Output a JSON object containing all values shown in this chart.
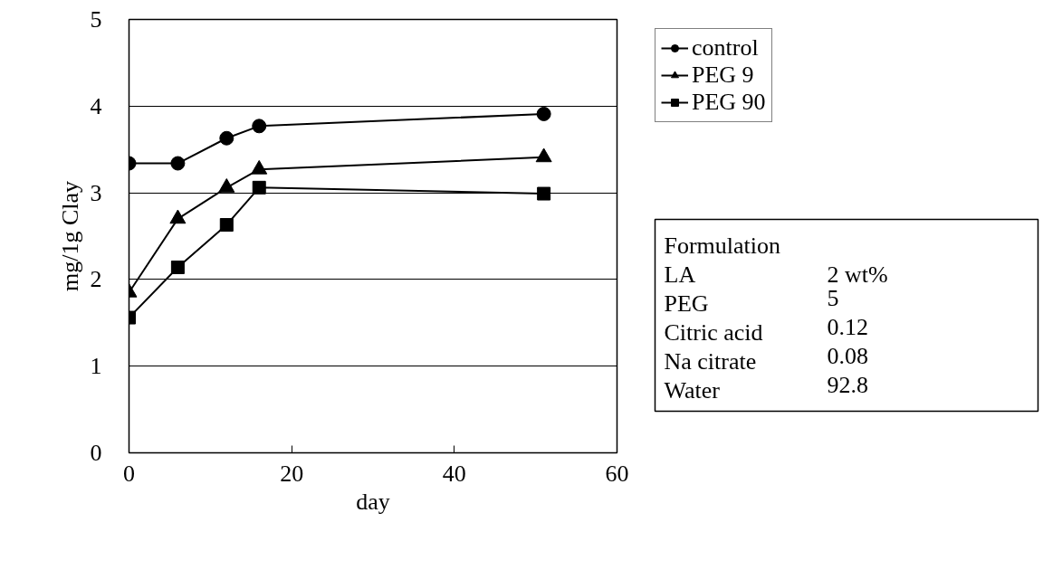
{
  "chart_data": {
    "type": "line",
    "xlabel": "day",
    "ylabel": "mg/1g Clay",
    "x": [
      0,
      6,
      12,
      16,
      51
    ],
    "series": [
      {
        "name": "control",
        "color": "#000000",
        "marker": "circle",
        "values": [
          3.34,
          3.34,
          3.63,
          3.77,
          3.91
        ]
      },
      {
        "name": "PEG 9",
        "color": "#000000",
        "marker": "triangle",
        "values": [
          1.85,
          2.7,
          3.06,
          3.27,
          3.41
        ]
      },
      {
        "name": "PEG 90",
        "color": "#000000",
        "marker": "square",
        "values": [
          1.56,
          2.14,
          2.63,
          3.06,
          2.99
        ]
      }
    ],
    "xlim": [
      0,
      60
    ],
    "xticks": [
      0,
      20,
      40,
      60
    ],
    "ylim": [
      0,
      5
    ],
    "yticks": [
      0,
      1,
      2,
      3,
      4,
      5
    ],
    "grid": "y",
    "legend": "top right",
    "line_style": "solid",
    "annotations": [
      "Formulation",
      "LA",
      "2 wt%",
      "PEG",
      "5",
      "Citric acid",
      "0.12",
      "Na citrate",
      "0.08",
      "Water",
      "92.8"
    ]
  }
}
